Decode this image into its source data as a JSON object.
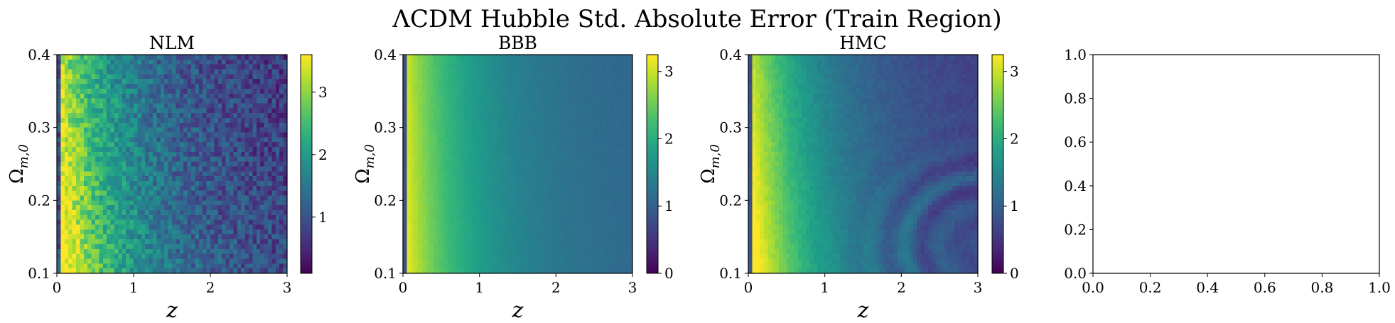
{
  "suptitle": "ΛCDM Hubble Std. Absolute Error (Train Region)",
  "colormap": "viridis",
  "chart_data": [
    {
      "type": "heatmap",
      "title": "NLM",
      "xlabel": "z",
      "ylabel": "Ω_{m,0}",
      "xlim": [
        0,
        3
      ],
      "ylim": [
        0.1,
        0.4
      ],
      "xticks": [
        0,
        1,
        2,
        3
      ],
      "yticks": [
        0.1,
        0.2,
        0.3,
        0.4
      ],
      "colorbar": {
        "vmin": 0.1,
        "vmax": 3.6,
        "ticks": [
          1,
          2,
          3
        ]
      },
      "field": {
        "near": 3.4,
        "far": 0.6,
        "low_omega_boost": 0.35,
        "noise": 0.45
      },
      "grid": false
    },
    {
      "type": "heatmap",
      "title": "BBB",
      "xlabel": "z",
      "ylabel": "Ω_{m,0}",
      "xlim": [
        0,
        3
      ],
      "ylim": [
        0.1,
        0.4
      ],
      "xticks": [
        0,
        1,
        2,
        3
      ],
      "yticks": [
        0.1,
        0.2,
        0.3,
        0.4
      ],
      "colorbar": {
        "vmin": 0,
        "vmax": 3.25,
        "ticks": [
          0,
          1,
          2,
          3
        ]
      },
      "field": {
        "near": 3.1,
        "far": 1.0,
        "low_omega_boost": 0.1,
        "noise": 0.03
      },
      "grid": false
    },
    {
      "type": "heatmap",
      "title": "HMC",
      "xlabel": "z",
      "ylabel": "Ω_{m,0}",
      "xlim": [
        0,
        3
      ],
      "ylim": [
        0.1,
        0.4
      ],
      "xticks": [
        0,
        1,
        2,
        3
      ],
      "yticks": [
        0.1,
        0.2,
        0.3,
        0.4
      ],
      "colorbar": {
        "vmin": 0,
        "vmax": 3.25,
        "ticks": [
          0,
          1,
          2,
          3
        ]
      },
      "field": {
        "near": 3.1,
        "far": 0.55,
        "low_omega_boost": 0.3,
        "noise": 0.08
      },
      "grid": false
    },
    {
      "type": "empty",
      "title": "",
      "xlim": [
        0.0,
        1.0
      ],
      "ylim": [
        0.0,
        1.0
      ],
      "xticks": [
        0.0,
        0.2,
        0.4,
        0.6,
        0.8,
        1.0
      ],
      "yticks": [
        0.0,
        0.2,
        0.4,
        0.6,
        0.8,
        1.0
      ],
      "xtick_labels": [
        "0.0",
        "0.2",
        "0.4",
        "0.6",
        "0.8",
        "1.0"
      ],
      "ytick_labels": [
        "0.0",
        "0.2",
        "0.4",
        "0.6",
        "0.8",
        "1.0"
      ],
      "grid": false
    }
  ]
}
